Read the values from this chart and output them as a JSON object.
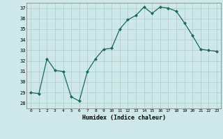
{
  "x": [
    0,
    1,
    2,
    3,
    4,
    5,
    6,
    7,
    8,
    9,
    10,
    11,
    12,
    13,
    14,
    15,
    16,
    17,
    18,
    19,
    20,
    21,
    22,
    23
  ],
  "y": [
    29,
    28.9,
    32.2,
    31.1,
    31.0,
    28.6,
    28.2,
    31.0,
    32.2,
    33.1,
    33.2,
    35.0,
    35.9,
    36.3,
    37.1,
    36.5,
    37.1,
    37.0,
    36.7,
    35.6,
    34.4,
    33.1,
    33.0,
    32.9
  ],
  "xlabel": "Humidex (Indice chaleur)",
  "ylim": [
    27.5,
    37.5
  ],
  "xlim": [
    -0.5,
    23.5
  ],
  "yticks": [
    28,
    29,
    30,
    31,
    32,
    33,
    34,
    35,
    36,
    37
  ],
  "xticks": [
    0,
    1,
    2,
    3,
    4,
    5,
    6,
    7,
    8,
    9,
    10,
    11,
    12,
    13,
    14,
    15,
    16,
    17,
    18,
    19,
    20,
    21,
    22,
    23
  ],
  "line_color": "#1a6b5a",
  "marker": "D",
  "marker_size": 2.0,
  "bg_color": "#cce8e8",
  "grid_color": "#b0c8c8",
  "title": ""
}
